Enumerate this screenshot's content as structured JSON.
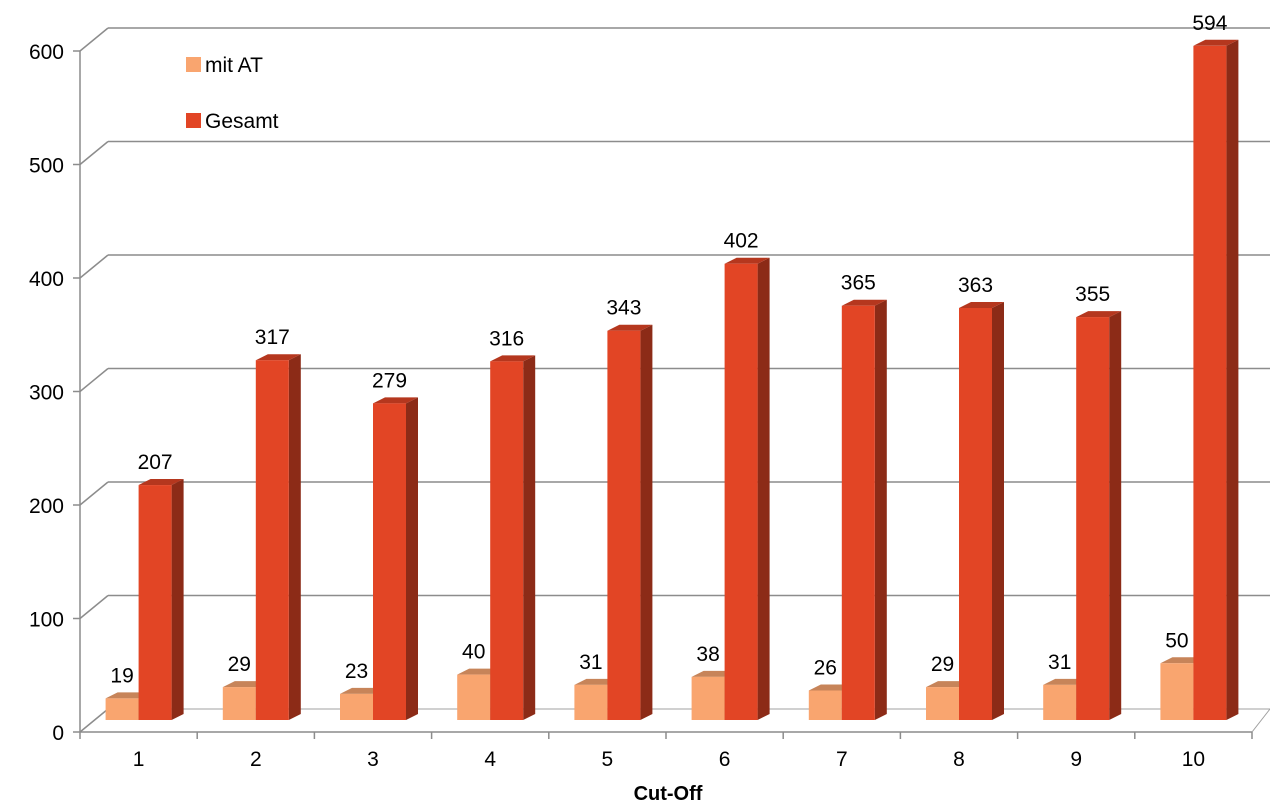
{
  "chart_data": {
    "type": "bar",
    "categories": [
      "1",
      "2",
      "3",
      "4",
      "5",
      "6",
      "7",
      "8",
      "9",
      "10"
    ],
    "series": [
      {
        "name": "mit AT",
        "values": [
          19,
          29,
          23,
          40,
          31,
          38,
          26,
          29,
          31,
          50
        ],
        "color": "#f9a56f"
      },
      {
        "name": "Gesamt",
        "values": [
          207,
          317,
          279,
          316,
          343,
          402,
          365,
          363,
          355,
          594
        ],
        "color": "#e24525"
      }
    ],
    "title": "",
    "xlabel": "Cut-Off",
    "ylabel": "",
    "ylim": [
      0,
      600
    ],
    "yticks": [
      0,
      100,
      200,
      300,
      400,
      500,
      600
    ],
    "grid": true,
    "legend_position": "top-left",
    "data_labels": true
  }
}
